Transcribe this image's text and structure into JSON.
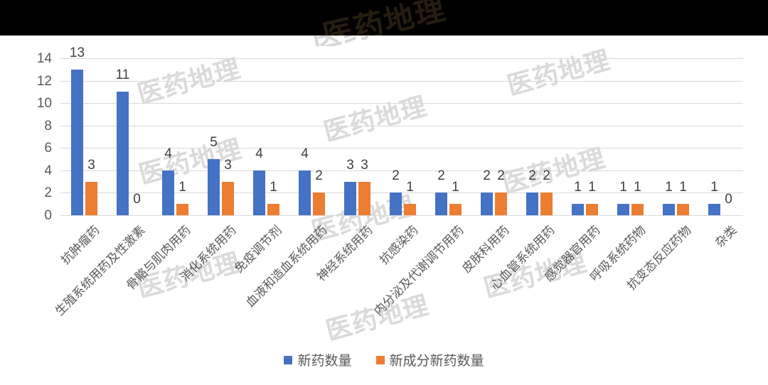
{
  "watermark": {
    "text": "医药地理",
    "light_color": "#dadada",
    "dark_color": "#261d11"
  },
  "banner": {
    "background": "#000000"
  },
  "chart_data": {
    "type": "bar",
    "title": "",
    "categories": [
      "抗肿瘤药",
      "生殖系统用药及性激素",
      "骨骼与肌肉用药",
      "消化系统用药",
      "免疫调节剂",
      "血液和造血系统用药",
      "神经系统用药",
      "抗感染药",
      "内分泌及代谢调节用药",
      "皮肤科用药",
      "心血管系统用药",
      "感觉器官用药",
      "呼吸系统药物",
      "抗变态反应药物",
      "杂类"
    ],
    "series": [
      {
        "name": "新药数量",
        "color": "#4472C4",
        "values": [
          13,
          11,
          4,
          5,
          4,
          4,
          3,
          2,
          2,
          2,
          2,
          1,
          1,
          1,
          1
        ]
      },
      {
        "name": "新成分新药数量",
        "color": "#ED7D31",
        "values": [
          3,
          0,
          1,
          3,
          1,
          2,
          3,
          1,
          1,
          2,
          2,
          1,
          1,
          1,
          0
        ]
      }
    ],
    "xlabel": "",
    "ylabel": "",
    "ylim": [
      0,
      14
    ],
    "yticks": [
      0,
      2,
      4,
      6,
      8,
      10,
      12,
      14
    ],
    "grid": true,
    "legend_position": "bottom",
    "gridline_color": "#d9d9d9",
    "axis_label_color": "#595959",
    "data_label_color": "#404040"
  }
}
